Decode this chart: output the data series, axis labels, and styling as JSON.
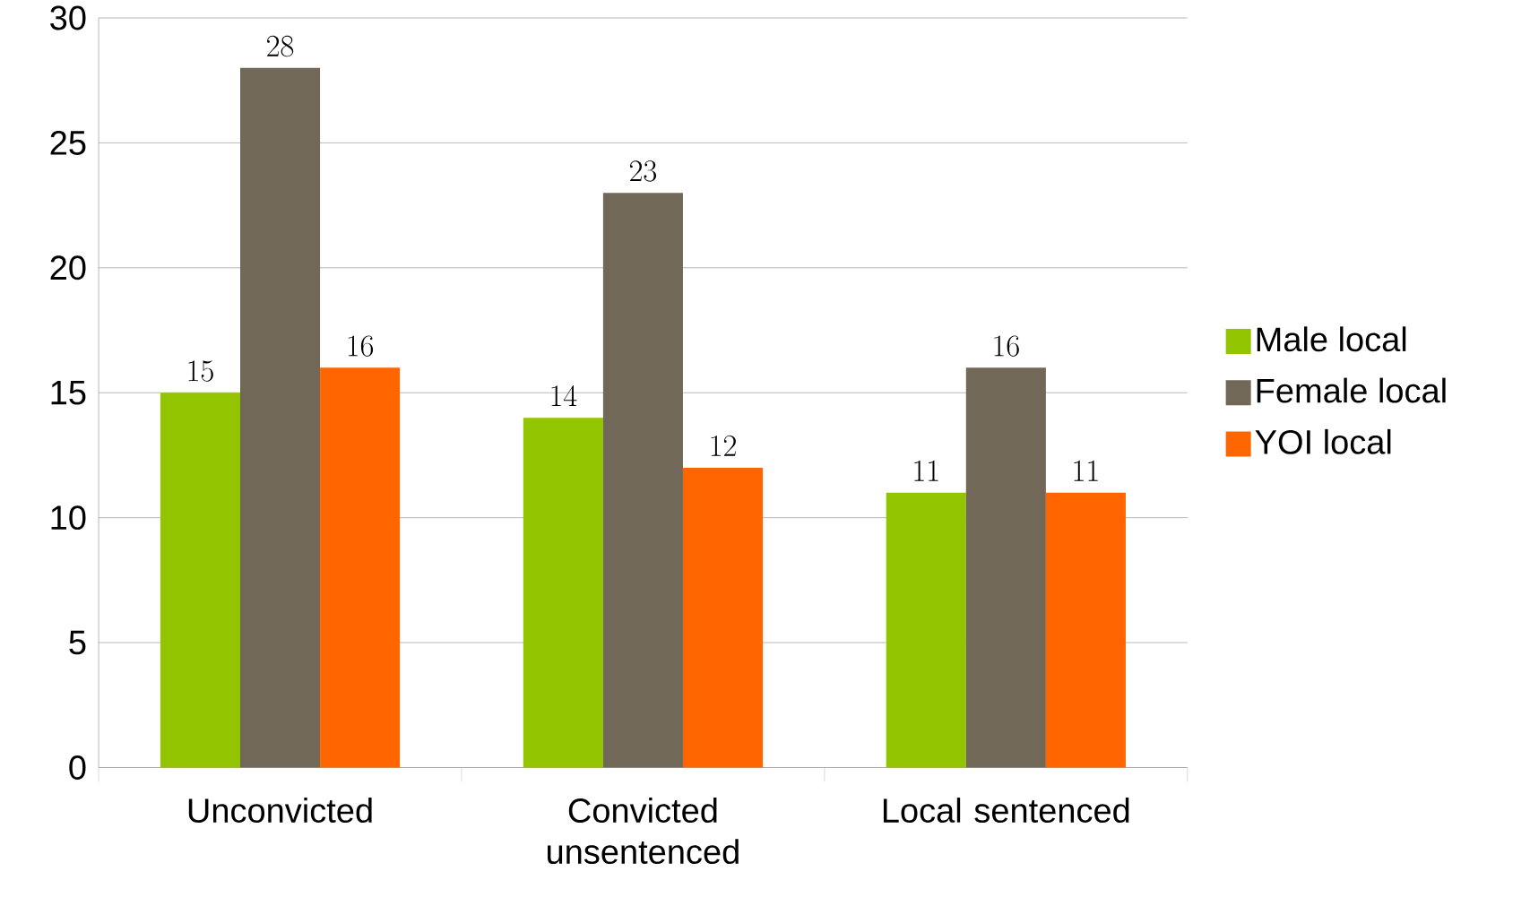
{
  "chart_data": {
    "type": "bar",
    "categories": [
      "Unconvicted",
      "Convicted unsentenced",
      "Local sentenced"
    ],
    "series": [
      {
        "name": "Male local",
        "color": "#92c500",
        "values": [
          15,
          14,
          11
        ]
      },
      {
        "name": "Female local",
        "color": "#726857",
        "values": [
          28,
          23,
          16
        ]
      },
      {
        "name": "YOI local",
        "color": "#ff6600",
        "values": [
          16,
          12,
          11
        ]
      }
    ],
    "ylim": [
      0,
      30
    ],
    "yticks": [
      0,
      5,
      10,
      15,
      20,
      25,
      30
    ],
    "grid": "y",
    "legend": "right",
    "data_labels": true
  }
}
